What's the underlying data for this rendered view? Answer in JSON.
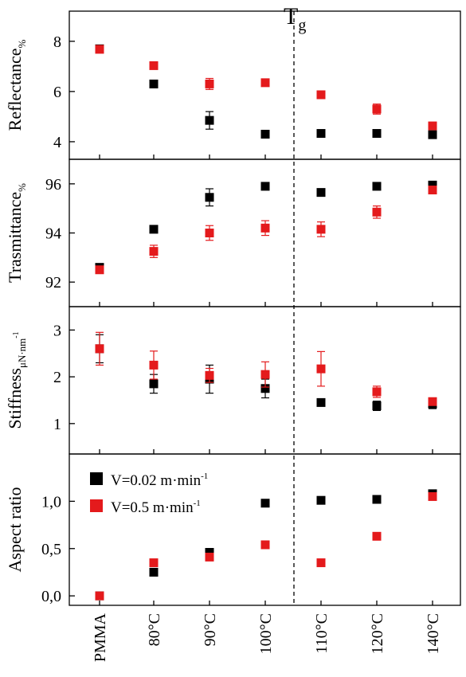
{
  "figure": {
    "tg_label_main": "T",
    "tg_label_sub": "g",
    "categories": [
      "PMMA",
      "80°C",
      "90°C",
      "100°C",
      "110°C",
      "120°C",
      "140°C"
    ],
    "legend": [
      {
        "label": "V=0.02 m·min",
        "sup": "-1",
        "color": "#000000"
      },
      {
        "label": "V=0.5 m·min",
        "sup": "-1",
        "color": "#e41a1c"
      }
    ],
    "colors": {
      "black_series": "#000000",
      "red_series": "#e41a1c"
    }
  },
  "chart_data": [
    {
      "type": "scatter",
      "ylabel": "Reflectance",
      "ylabel_sub": "%",
      "ylim": [
        3.3,
        9.2
      ],
      "yticks": [
        4,
        6,
        8
      ],
      "ytick_labels": [
        "4",
        "6",
        "8"
      ],
      "categories": [
        "PMMA",
        "80°C",
        "90°C",
        "100°C",
        "110°C",
        "120°C",
        "140°C"
      ],
      "series": [
        {
          "color": "#000000",
          "values": [
            7.7,
            6.3,
            4.85,
            4.3,
            4.33,
            4.33,
            4.28
          ],
          "errors": [
            0,
            0,
            0.35,
            0,
            0,
            0,
            0
          ]
        },
        {
          "color": "#e41a1c",
          "values": [
            7.68,
            7.03,
            6.3,
            6.35,
            5.87,
            5.3,
            4.63
          ],
          "errors": [
            0.1,
            0.12,
            0.22,
            0.12,
            0.12,
            0.2,
            0.1
          ]
        }
      ]
    },
    {
      "type": "scatter",
      "ylabel": "Trasmittance",
      "ylabel_sub": "%",
      "ylim": [
        91.0,
        97.0
      ],
      "yticks": [
        92,
        94,
        96
      ],
      "ytick_labels": [
        "92",
        "94",
        "96"
      ],
      "categories": [
        "PMMA",
        "80°C",
        "90°C",
        "100°C",
        "110°C",
        "120°C",
        "140°C"
      ],
      "series": [
        {
          "color": "#000000",
          "values": [
            92.6,
            94.15,
            95.45,
            95.9,
            95.65,
            95.9,
            95.95
          ],
          "errors": [
            0,
            0,
            0.35,
            0,
            0.1,
            0,
            0
          ]
        },
        {
          "color": "#e41a1c",
          "values": [
            92.5,
            93.25,
            94.0,
            94.2,
            94.15,
            94.85,
            95.75
          ],
          "errors": [
            0.1,
            0.25,
            0.3,
            0.3,
            0.3,
            0.25,
            0.1
          ]
        }
      ]
    },
    {
      "type": "scatter",
      "ylabel": "Stiffness",
      "ylabel_sub": "μN·nm",
      "ylabel_sup": "-1",
      "ylim": [
        0.35,
        3.5
      ],
      "yticks": [
        1,
        2,
        3
      ],
      "ytick_labels": [
        "1",
        "2",
        "3"
      ],
      "categories": [
        "PMMA",
        "80°C",
        "90°C",
        "100°C",
        "110°C",
        "120°C",
        "140°C"
      ],
      "series": [
        {
          "color": "#000000",
          "values": [
            2.6,
            1.85,
            1.95,
            1.75,
            1.45,
            1.38,
            1.42
          ],
          "errors": [
            0.3,
            0.2,
            0.3,
            0.2,
            0,
            0.1,
            0.1
          ]
        },
        {
          "color": "#e41a1c",
          "values": [
            2.6,
            2.25,
            2.03,
            2.05,
            2.17,
            1.68,
            1.47
          ],
          "errors": [
            0.35,
            0.3,
            0.15,
            0.27,
            0.37,
            0.12,
            0.05
          ]
        }
      ]
    },
    {
      "type": "scatter",
      "ylabel": "Aspect ratio",
      "ylim": [
        -0.1,
        1.5
      ],
      "yticks": [
        0.0,
        0.5,
        1.0
      ],
      "ytick_labels": [
        "0,0",
        "0,5",
        "1,0"
      ],
      "categories": [
        "PMMA",
        "80°C",
        "90°C",
        "100°C",
        "110°C",
        "120°C",
        "140°C"
      ],
      "series": [
        {
          "color": "#000000",
          "values": [
            0.0,
            0.25,
            0.46,
            0.98,
            1.01,
            1.02,
            1.08
          ],
          "errors": [
            0,
            0,
            0,
            0,
            0,
            0.04,
            0
          ]
        },
        {
          "color": "#e41a1c",
          "values": [
            0.0,
            0.35,
            0.41,
            0.54,
            0.35,
            0.63,
            1.05
          ],
          "errors": [
            0,
            0,
            0,
            0,
            0,
            0,
            0
          ]
        }
      ]
    }
  ]
}
